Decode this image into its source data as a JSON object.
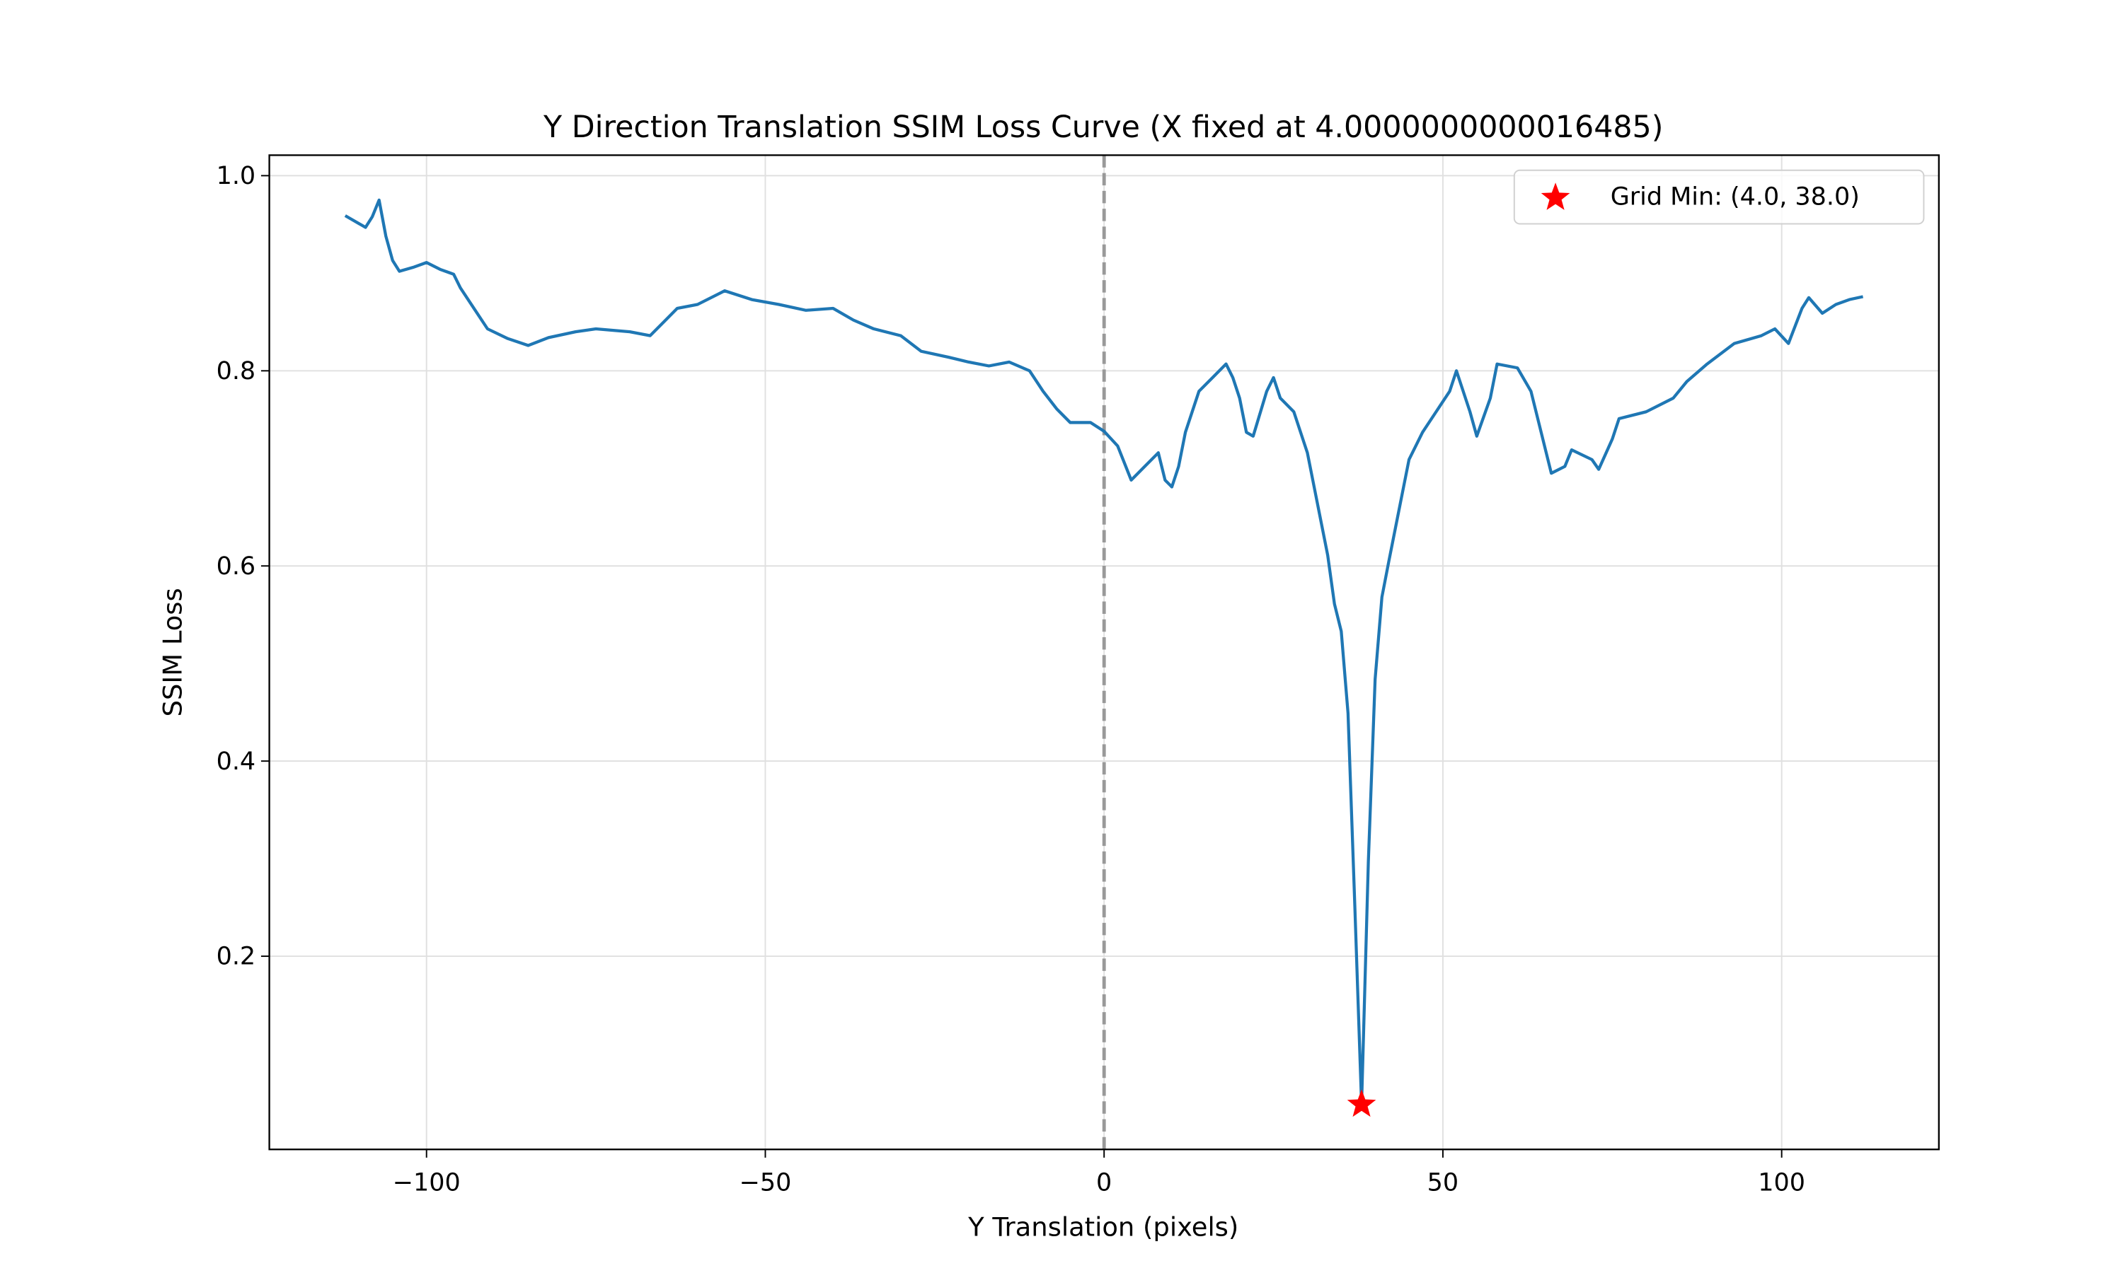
{
  "chart_data": {
    "type": "line",
    "title": "Y Direction Translation SSIM Loss Curve (X fixed at 4.0000000000016485)",
    "xlabel": "Y Translation (pixels)",
    "ylabel": "SSIM Loss",
    "xlim": [
      -123.2,
      123.2
    ],
    "ylim": [
      0.002,
      1.021
    ],
    "xticks": [
      {
        "value": -100,
        "label": "−100"
      },
      {
        "value": -50,
        "label": "−50"
      },
      0,
      50,
      100
    ],
    "yticks": [
      0.2,
      0.4,
      0.6,
      0.8,
      {
        "value": 1,
        "label": "1.0"
      }
    ],
    "grid": true,
    "legend": "upper right",
    "x": [
      -112,
      -110,
      -109,
      -108,
      -107,
      -106,
      -105,
      -104,
      -102,
      -100,
      -98,
      -96,
      -95,
      -93,
      -91,
      -88,
      -85,
      -82,
      -78,
      -75,
      -70,
      -67,
      -65,
      -63,
      -60,
      -56,
      -52,
      -48,
      -44,
      -40,
      -37,
      -34,
      -30,
      -27,
      -23,
      -20,
      -17,
      -14,
      -11,
      -9,
      -7,
      -5,
      -2,
      0,
      2,
      4,
      6,
      8,
      9,
      10,
      11,
      12,
      14,
      16,
      18,
      19,
      20,
      21,
      22,
      24,
      25,
      26,
      28,
      30,
      31,
      32,
      33,
      34,
      35,
      36,
      37,
      38,
      39,
      40,
      41,
      42,
      43,
      44,
      45,
      47,
      49,
      51,
      52,
      54,
      55,
      57,
      58,
      61,
      63,
      65,
      66,
      68,
      69,
      72,
      73,
      75,
      76,
      80,
      84,
      86,
      89,
      93,
      97,
      99,
      101,
      103,
      104,
      106,
      108,
      110,
      112
    ],
    "series": [
      {
        "color": "#1f77b4",
        "values": [
          0.959,
          0.951,
          0.947,
          0.958,
          0.975,
          0.938,
          0.913,
          0.902,
          0.906,
          0.911,
          0.904,
          0.899,
          0.885,
          0.864,
          0.843,
          0.833,
          0.826,
          0.834,
          0.84,
          0.843,
          0.84,
          0.836,
          0.85,
          0.864,
          0.868,
          0.882,
          0.873,
          0.868,
          0.862,
          0.864,
          0.852,
          0.843,
          0.836,
          0.82,
          0.814,
          0.809,
          0.805,
          0.809,
          0.8,
          0.779,
          0.761,
          0.747,
          0.747,
          0.738,
          0.723,
          0.688,
          0.702,
          0.716,
          0.688,
          0.681,
          0.702,
          0.737,
          0.779,
          0.793,
          0.807,
          0.793,
          0.772,
          0.737,
          0.733,
          0.779,
          0.793,
          0.772,
          0.758,
          0.716,
          0.681,
          0.646,
          0.611,
          0.561,
          0.533,
          0.449,
          0.252,
          0.048,
          0.297,
          0.484,
          0.568,
          0.604,
          0.639,
          0.674,
          0.709,
          0.737,
          0.758,
          0.779,
          0.8,
          0.758,
          0.733,
          0.772,
          0.807,
          0.803,
          0.779,
          0.723,
          0.695,
          0.702,
          0.719,
          0.709,
          0.699,
          0.73,
          0.751,
          0.758,
          0.772,
          0.789,
          0.807,
          0.828,
          0.836,
          0.843,
          0.828,
          0.864,
          0.875,
          0.859,
          0.868,
          0.873,
          0.876
        ]
      }
    ],
    "markers": [
      {
        "name": "Grid Min: (4.0, 38.0)",
        "x": 38,
        "y": 0.048,
        "color": "#ff0000"
      }
    ],
    "vlines": [
      {
        "x": 0,
        "color": "#999999",
        "style": "dashed"
      }
    ]
  }
}
